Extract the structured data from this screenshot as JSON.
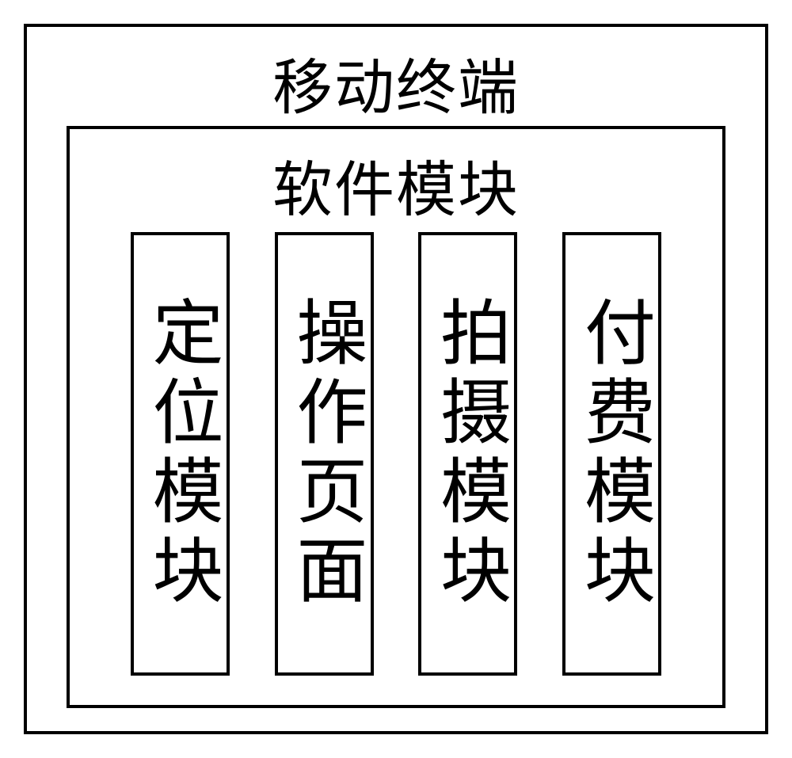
{
  "diagram": {
    "type": "nested-block-diagram",
    "background_color": "#ffffff",
    "border_color": "#000000",
    "border_width": 4,
    "text_color": "#000000",
    "font_family": "SimSun",
    "outer": {
      "title": "移动终端",
      "title_fontsize": 76
    },
    "middle": {
      "title": "软件模块",
      "title_fontsize": 76
    },
    "modules": [
      {
        "label": "定位模块"
      },
      {
        "label": "操作页面"
      },
      {
        "label": "拍摄模块"
      },
      {
        "label": "付费模块"
      }
    ],
    "module_fontsize": 90
  }
}
